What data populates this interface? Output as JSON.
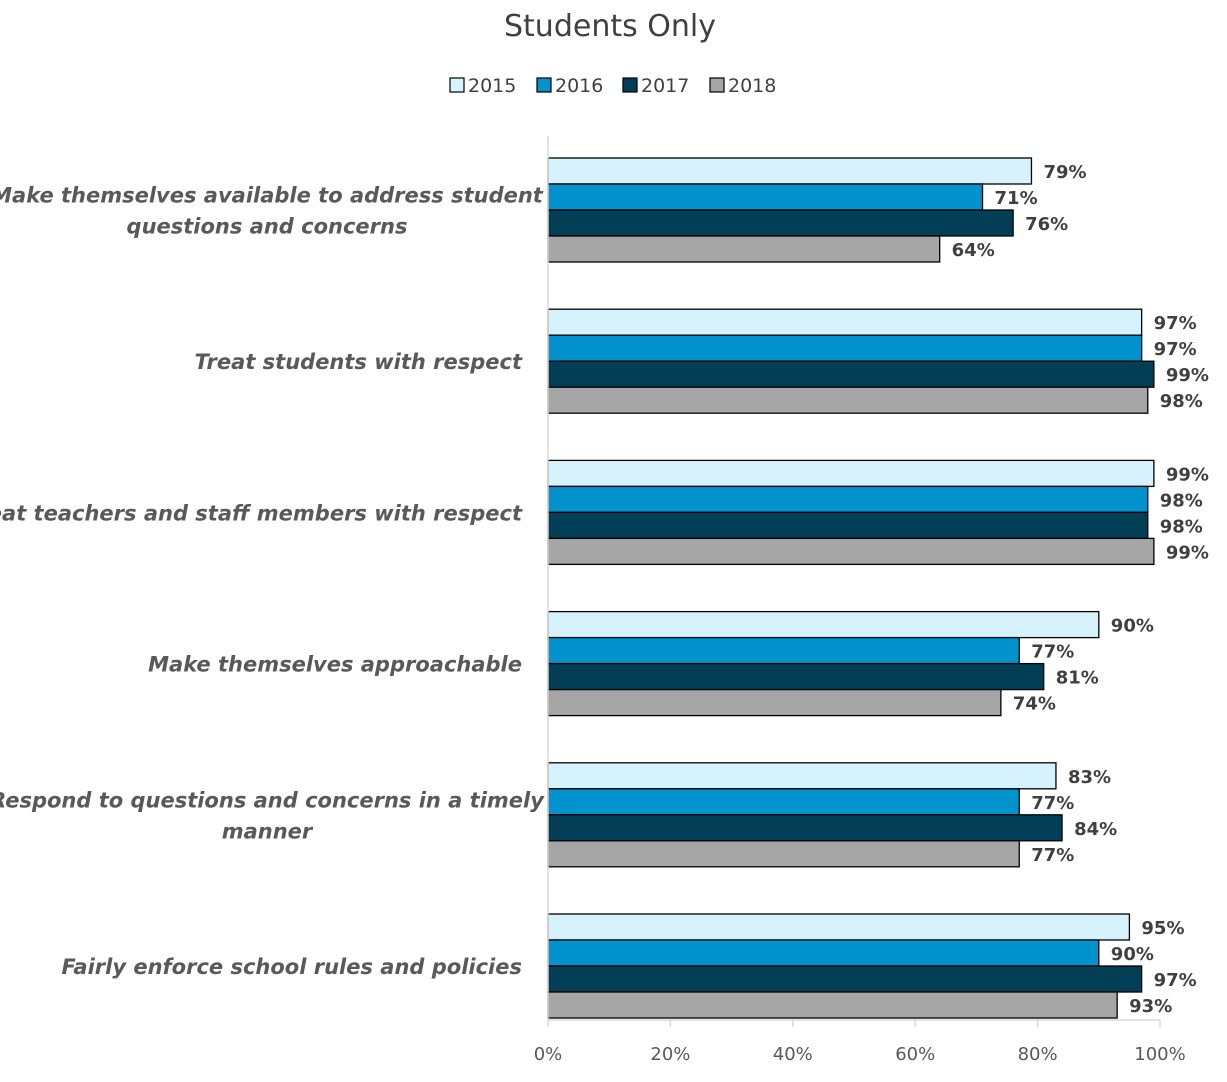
{
  "chart_data": {
    "type": "bar",
    "orientation": "horizontal",
    "title": "Students Only",
    "categories": [
      "Make themselves available to address student questions and concerns",
      "Treat students with respect",
      "Treat teachers and staff members with respect",
      "Make themselves approachable",
      "Respond to questions and concerns in a timely manner",
      "Fairly enforce school rules and policies"
    ],
    "series": [
      {
        "name": "2015",
        "color": "#d6f3fd",
        "values": [
          79,
          97,
          99,
          90,
          83,
          95
        ],
        "labels": [
          "79%",
          "97%",
          "99%",
          "90%",
          "83%",
          "95%"
        ]
      },
      {
        "name": "2016",
        "color": "#0293ce",
        "values": [
          71,
          97,
          98,
          77,
          77,
          90
        ],
        "labels": [
          "71%",
          "97%",
          "98%",
          "77%",
          "77%",
          "90%"
        ]
      },
      {
        "name": "2017",
        "color": "#023f56",
        "values": [
          76,
          99,
          98,
          81,
          84,
          97
        ],
        "labels": [
          "76%",
          "99%",
          "98%",
          "81%",
          "84%",
          "97%"
        ]
      },
      {
        "name": "2018",
        "color": "#a6a6a6",
        "values": [
          64,
          98,
          99,
          74,
          77,
          93
        ],
        "labels": [
          "64%",
          "98%",
          "99%",
          "74%",
          "77%",
          "93%"
        ]
      }
    ],
    "xlim": [
      0,
      100
    ],
    "xticks": [
      "0%",
      "20%",
      "40%",
      "60%",
      "80%",
      "100%"
    ],
    "legend_position": "top",
    "grid": false
  }
}
